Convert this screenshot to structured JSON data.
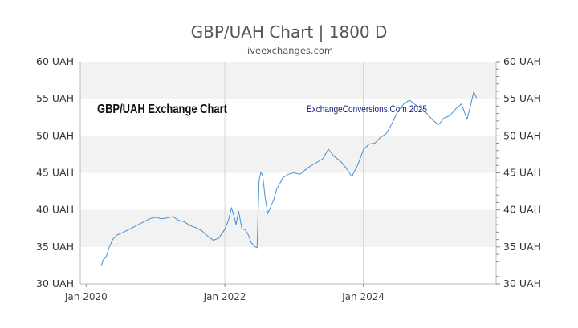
{
  "chart_data": {
    "type": "line",
    "title": "GBP/UAH Chart | 1800 D",
    "subtitle": "liveexchanges.com",
    "inner_title": "GBP/UAH Exchange Chart",
    "watermark": "ExchangeConversions.Com 2025",
    "xlabel": "",
    "ylabel": "",
    "x_ticks": [
      "Jan 2020",
      "Jan 2022",
      "Jan 2024"
    ],
    "y_ticks": [
      "30 UAH",
      "35 UAH",
      "40 UAH",
      "45 UAH",
      "50 UAH",
      "55 UAH",
      "60 UAH"
    ],
    "ylim": [
      30,
      60
    ],
    "xlim": [
      "2019-12-01",
      "2025-12-01"
    ],
    "grid": true,
    "line_color": "#4a90d2",
    "watermark_color": "#1a237e",
    "x": [
      "2020-03-20",
      "2020-04-01",
      "2020-04-15",
      "2020-05-01",
      "2020-05-20",
      "2020-06-10",
      "2020-07-01",
      "2020-08-01",
      "2020-09-01",
      "2020-10-01",
      "2020-11-01",
      "2020-12-01",
      "2021-01-01",
      "2021-02-01",
      "2021-03-01",
      "2021-04-01",
      "2021-05-01",
      "2021-06-01",
      "2021-07-01",
      "2021-08-01",
      "2021-09-01",
      "2021-10-01",
      "2021-11-01",
      "2021-12-01",
      "2022-01-01",
      "2022-01-20",
      "2022-02-05",
      "2022-02-20",
      "2022-03-01",
      "2022-03-15",
      "2022-04-01",
      "2022-04-20",
      "2022-05-05",
      "2022-05-20",
      "2022-06-05",
      "2022-06-20",
      "2022-07-01",
      "2022-07-10",
      "2022-07-20",
      "2022-08-01",
      "2022-08-15",
      "2022-09-01",
      "2022-09-15",
      "2022-10-01",
      "2022-10-15",
      "2022-11-01",
      "2022-12-01",
      "2023-01-01",
      "2023-02-01",
      "2023-03-01",
      "2023-04-01",
      "2023-05-01",
      "2023-06-01",
      "2023-07-01",
      "2023-08-01",
      "2023-09-01",
      "2023-10-01",
      "2023-11-01",
      "2023-12-01",
      "2024-01-01",
      "2024-02-01",
      "2024-03-01",
      "2024-04-01",
      "2024-05-01",
      "2024-06-01",
      "2024-07-01",
      "2024-08-01",
      "2024-09-01",
      "2024-10-01",
      "2024-11-01",
      "2024-12-01",
      "2025-01-01",
      "2025-02-01",
      "2025-03-01",
      "2025-04-01",
      "2025-05-01",
      "2025-06-01",
      "2025-07-01",
      "2025-07-20",
      "2025-08-05",
      "2025-08-20"
    ],
    "series": [
      {
        "values": [
          32.4,
          33.3,
          33.6,
          34.9,
          36.0,
          36.6,
          36.8,
          37.2,
          37.6,
          38.0,
          38.4,
          38.8,
          39.0,
          38.8,
          38.9,
          39.1,
          38.6,
          38.4,
          37.9,
          37.6,
          37.2,
          36.5,
          35.9,
          36.2,
          37.4,
          38.6,
          40.3,
          39.0,
          38.0,
          39.8,
          37.5,
          37.3,
          36.6,
          35.6,
          35.1,
          34.9,
          44.0,
          45.1,
          44.6,
          41.7,
          39.5,
          40.5,
          41.3,
          42.8,
          43.4,
          44.3,
          44.8,
          45.0,
          44.8,
          45.4,
          46.0,
          46.4,
          46.9,
          48.2,
          47.2,
          46.6,
          45.7,
          44.5,
          46.0,
          48.1,
          48.9,
          49.0,
          49.8,
          50.3,
          51.7,
          53.3,
          54.3,
          54.8,
          54.2,
          53.7,
          53.0,
          52.1,
          51.5,
          52.4,
          52.7,
          53.6,
          54.3,
          52.2,
          54.2,
          55.9,
          55.1
        ]
      }
    ]
  }
}
